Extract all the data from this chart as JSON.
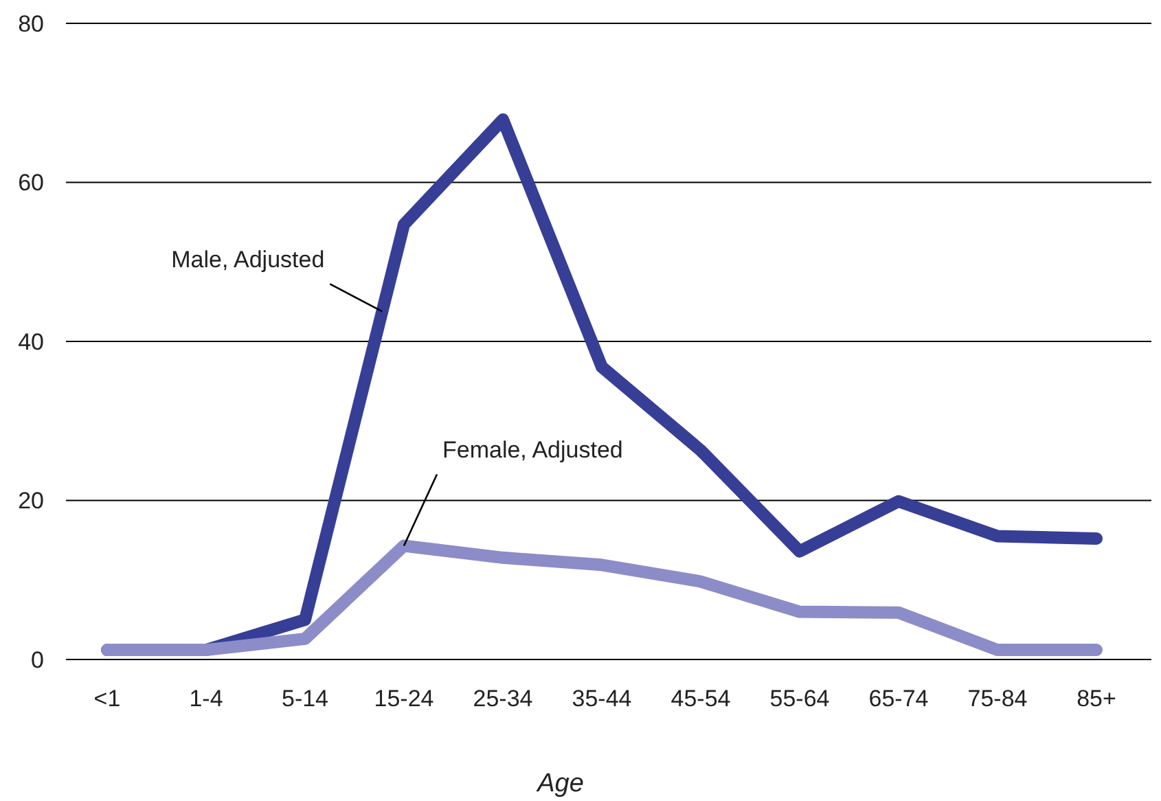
{
  "chart_data": {
    "type": "line",
    "xlabel": "Age",
    "categories": [
      "<1",
      "1-4",
      "5-14",
      "15-24",
      "25-34",
      "35-44",
      "45-54",
      "55-64",
      "65-74",
      "75-84",
      "85+"
    ],
    "series": [
      {
        "name": "Male, Adjusted",
        "color": "#363e96",
        "values": [
          1.2,
          1.2,
          5.0,
          54.7,
          67.9,
          36.8,
          26.3,
          13.6,
          19.9,
          15.5,
          15.2
        ]
      },
      {
        "name": "Female, Adjusted",
        "color": "#8c8cc8",
        "values": [
          1.2,
          1.2,
          2.6,
          14.3,
          12.8,
          11.9,
          9.8,
          6.0,
          5.9,
          1.2,
          1.2
        ]
      }
    ],
    "ylim": [
      0,
      80
    ],
    "yticks": [
      0,
      20,
      40,
      60,
      80
    ],
    "grid": "y",
    "marker": "none",
    "line_style": "solid"
  }
}
